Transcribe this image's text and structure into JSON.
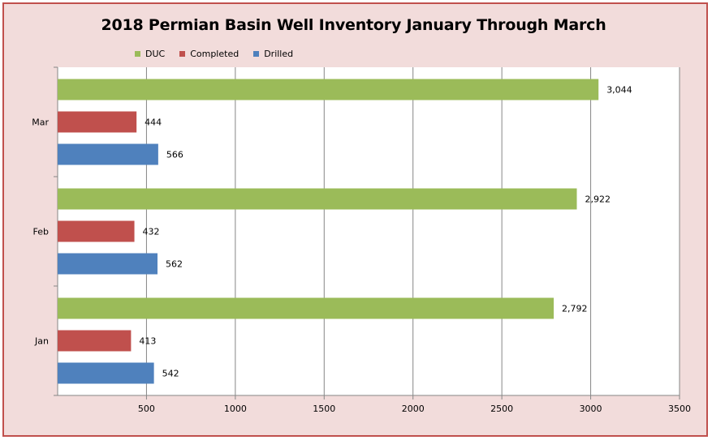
{
  "chart_data": {
    "type": "bar",
    "orientation": "horizontal",
    "title": "2018 Permian Basin Well Inventory January Through March",
    "categories": [
      "Jan",
      "Feb",
      "Mar"
    ],
    "series": [
      {
        "name": "DUC",
        "color": "#9bbb59",
        "values": [
          2792,
          2922,
          3044
        ],
        "labels": [
          "2,792",
          "2,922",
          "3,044"
        ]
      },
      {
        "name": "Completed",
        "color": "#c0504d",
        "values": [
          413,
          432,
          444
        ],
        "labels": [
          "413",
          "432",
          "444"
        ]
      },
      {
        "name": "Drilled",
        "color": "#4f81bd",
        "values": [
          542,
          562,
          566
        ],
        "labels": [
          "542",
          "562",
          "566"
        ]
      }
    ],
    "xlim": [
      0,
      3500
    ],
    "x_ticks": [
      500,
      1000,
      1500,
      2000,
      2500,
      3000,
      3500
    ],
    "grid": true,
    "legend_position": "top-left"
  }
}
